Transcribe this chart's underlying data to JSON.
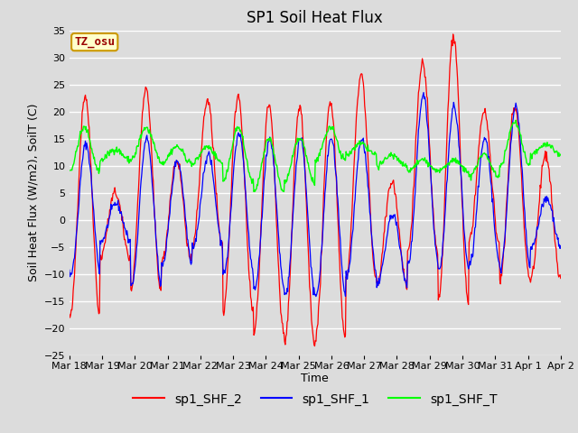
{
  "title": "SP1 Soil Heat Flux",
  "xlabel": "Time",
  "ylabel": "Soil Heat Flux (W/m2), SoilT (C)",
  "ylim": [
    -25,
    35
  ],
  "yticks": [
    -25,
    -20,
    -15,
    -10,
    -5,
    0,
    5,
    10,
    15,
    20,
    25,
    30,
    35
  ],
  "xtick_labels": [
    "Mar 18",
    "Mar 19",
    "Mar 20",
    "Mar 21",
    "Mar 22",
    "Mar 23",
    "Mar 24",
    "Mar 25",
    "Mar 26",
    "Mar 27",
    "Mar 28",
    "Mar 29",
    "Mar 30",
    "Mar 31",
    "Apr 1",
    "Apr 2"
  ],
  "legend_labels": [
    "sp1_SHF_2",
    "sp1_SHF_1",
    "sp1_SHF_T"
  ],
  "line_colors": [
    "red",
    "blue",
    "lime"
  ],
  "annotation_text": "TZ_osu",
  "annotation_bg": "#ffffcc",
  "annotation_border": "#cc9900",
  "annotation_color": "#990000",
  "background_color": "#dcdcdc",
  "grid_color": "#f0f0f0",
  "title_fontsize": 12,
  "axis_label_fontsize": 9,
  "tick_fontsize": 8,
  "legend_fontsize": 10,
  "red_peaks": [
    23,
    5,
    24,
    11,
    22,
    23,
    21,
    21,
    22,
    27,
    7,
    29,
    34,
    20,
    21,
    12
  ],
  "red_troughs": [
    -18,
    -7,
    -13,
    -8,
    -5,
    -17,
    -21,
    -23,
    -22,
    -11,
    -12,
    -6,
    -15,
    -4,
    -11,
    -11
  ],
  "blue_peaks": [
    14,
    3,
    15,
    11,
    12,
    16,
    15,
    15,
    15,
    15,
    1,
    23,
    21,
    15,
    21,
    4
  ],
  "blue_troughs": [
    -10,
    -4,
    -12,
    -8,
    -5,
    -10,
    -13,
    -14,
    -14,
    -10,
    -12,
    -8,
    -9,
    -8,
    -9,
    -5
  ],
  "green_base": [
    13,
    12,
    14,
    12,
    12,
    12,
    10,
    11,
    14,
    13,
    11,
    10,
    10,
    10,
    14,
    13
  ],
  "green_amp": [
    4,
    1,
    3,
    1.5,
    1.5,
    5,
    5,
    4,
    3,
    1,
    1,
    1,
    1,
    2,
    4,
    1
  ],
  "red_phase": [
    0.55,
    0.5,
    0.5,
    0.5,
    0.5,
    0.5,
    0.5,
    0.5,
    0.5,
    0.5,
    0.5,
    0.5,
    0.5,
    0.5,
    0.5,
    0.5
  ],
  "blue_phase": [
    0.6,
    0.55,
    0.55,
    0.55,
    0.55,
    0.55,
    0.55,
    0.55,
    0.55,
    0.55,
    0.55,
    0.55,
    0.55,
    0.55,
    0.55,
    0.55
  ],
  "n_days": 16,
  "n_per_day": 48
}
